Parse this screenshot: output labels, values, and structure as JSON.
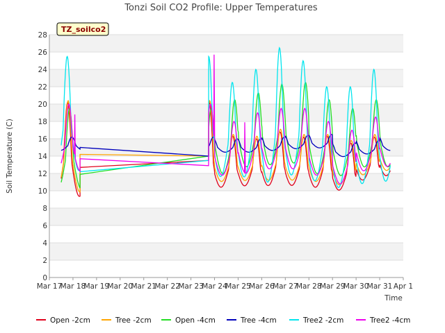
{
  "chart_data": {
    "type": "line",
    "title": "Tonzi Soil CO2 Profile: Upper Temperatures",
    "xlabel": "Time",
    "ylabel": "Soil Temperature (C)",
    "ylim": [
      0,
      28
    ],
    "yticks": [
      0,
      2,
      4,
      6,
      8,
      10,
      12,
      14,
      16,
      18,
      20,
      22,
      24,
      26,
      28
    ],
    "xlim": [
      17,
      32
    ],
    "xticks": [
      {
        "v": 17,
        "label": "Mar 17"
      },
      {
        "v": 18,
        "label": "Mar 18"
      },
      {
        "v": 19,
        "label": "Mar 19"
      },
      {
        "v": 20,
        "label": "Mar 20"
      },
      {
        "v": 21,
        "label": "Mar 21"
      },
      {
        "v": 22,
        "label": "Mar 22"
      },
      {
        "v": 23,
        "label": "Mar 23"
      },
      {
        "v": 24,
        "label": "Mar 24"
      },
      {
        "v": 25,
        "label": "Mar 25"
      },
      {
        "v": 26,
        "label": "Mar 26"
      },
      {
        "v": 27,
        "label": "Mar 27"
      },
      {
        "v": 28,
        "label": "Mar 28"
      },
      {
        "v": 29,
        "label": "Mar 29"
      },
      {
        "v": 30,
        "label": "Mar 30"
      },
      {
        "v": 31,
        "label": "Mar 31"
      },
      {
        "v": 32,
        "label": "Apr 1"
      }
    ],
    "grid": "horizontal bands",
    "legend_position": "bottom",
    "badge": "TZ_soilco2",
    "series": [
      {
        "name": "Open -2cm",
        "color": "#e0001b",
        "gap": [
          18.3,
          23.75
        ],
        "gap_values": [
          12.7,
          13.5
        ],
        "mean": [
          13.2,
          12.5,
          12.5,
          12.8,
          12.6,
          12.5,
          12.0,
          13.0,
          13.5
        ],
        "amp": [
          7.0,
          3.8,
          3.5,
          4.0,
          3.6,
          3.8,
          3.5,
          3.2,
          3.2
        ],
        "phase": 0.6
      },
      {
        "name": "Tree -2cm",
        "color": "#ffa500",
        "gap": [
          18.3,
          23.75
        ],
        "gap_values": [
          14.2,
          14.0
        ],
        "mean": [
          13.6,
          13.0,
          13.0,
          13.3,
          13.1,
          13.0,
          12.5,
          13.5,
          14.0
        ],
        "amp": [
          6.8,
          3.5,
          3.3,
          3.8,
          3.4,
          3.5,
          3.3,
          3.0,
          3.0
        ],
        "phase": 0.62
      },
      {
        "name": "Open -4cm",
        "color": "#22dd22",
        "gap": [
          18.3,
          23.75
        ],
        "gap_values": [
          11.9,
          14.0
        ],
        "mean": [
          13.5,
          15.0,
          15.8,
          16.3,
          16.5,
          15.0,
          14.5,
          15.5,
          15.5
        ],
        "amp": [
          6.0,
          5.5,
          5.5,
          6.0,
          6.0,
          5.5,
          5.0,
          5.0,
          5.0
        ],
        "phase": 0.68
      },
      {
        "name": "Tree -4cm",
        "color": "#0000bb",
        "gap": [
          18.3,
          23.75
        ],
        "gap_values": [
          15.0,
          14.0
        ],
        "mean": [
          15.2,
          15.0,
          15.0,
          15.2,
          15.4,
          15.5,
          14.5,
          14.8,
          15.2
        ],
        "amp": [
          1.0,
          1.0,
          1.0,
          1.0,
          1.0,
          1.0,
          1.0,
          1.0,
          1.0
        ],
        "phase": 0.78
      },
      {
        "name": "Tree2 -2cm",
        "color": "#00e5ee",
        "gap": [
          18.3,
          23.75
        ],
        "gap_values": [
          12.2,
          13.5
        ],
        "mean": [
          17.0,
          15.5,
          16.0,
          16.5,
          16.5,
          15.0,
          14.5,
          15.5,
          15.5
        ],
        "amp": [
          8.5,
          7.0,
          8.0,
          10.0,
          8.5,
          7.0,
          7.5,
          8.5,
          8.0
        ],
        "phase": 0.58
      },
      {
        "name": "Tree2 -4cm",
        "color": "#ee00ee",
        "gap": [
          18.3,
          23.75
        ],
        "gap_values": [
          13.7,
          12.9
        ],
        "mean": [
          15.0,
          14.0,
          14.5,
          15.0,
          15.0,
          14.0,
          13.0,
          14.5,
          15.0
        ],
        "amp": [
          5.0,
          4.0,
          4.5,
          4.5,
          4.5,
          4.0,
          4.0,
          4.0,
          4.0
        ],
        "phase": 0.65
      }
    ],
    "spikes": [
      {
        "series": "Tree2 -4cm",
        "x": 23.98,
        "y": 25.7
      },
      {
        "series": "Tree2 -4cm",
        "x": 25.28,
        "y": 17.9
      },
      {
        "series": "Tree2 -4cm",
        "x": 18.08,
        "y": 18.8
      }
    ]
  }
}
